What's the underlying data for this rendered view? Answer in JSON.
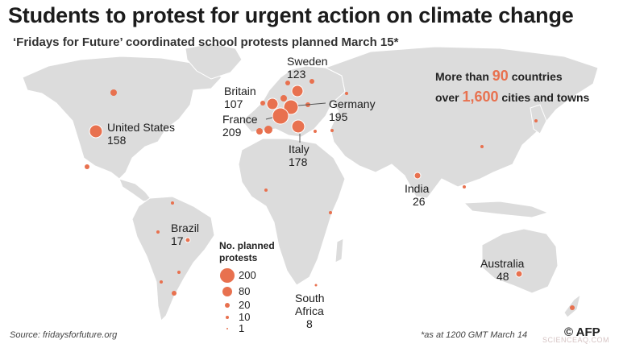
{
  "header": {
    "title": "Students to protest for urgent action on climate change",
    "subtitle": "‘Fridays for Future’ coordinated school protests planned March 15*"
  },
  "stats": {
    "countries_prefix": "More than",
    "countries_num": "90",
    "countries_suffix": "countries",
    "cities_prefix": "over",
    "cities_num": "1,600",
    "cities_suffix": "cities and towns"
  },
  "countries": [
    {
      "name": "Sweden",
      "value": "123"
    },
    {
      "name": "Britain",
      "value": "107"
    },
    {
      "name": "Germany",
      "value": "195"
    },
    {
      "name": "France",
      "value": "209"
    },
    {
      "name": "United States",
      "value": "158"
    },
    {
      "name": "Italy",
      "value": "178"
    },
    {
      "name": "India",
      "value": "26"
    },
    {
      "name": "Brazil",
      "value": "17"
    },
    {
      "name": "Australia",
      "value": "48"
    },
    {
      "name": "South",
      "name2": "Africa",
      "value": "8"
    }
  ],
  "legend": {
    "title_line1": "No. planned",
    "title_line2": "protests",
    "values": [
      "200",
      "80",
      "20",
      "10",
      "1"
    ]
  },
  "footer": {
    "source": "Source: fridaysforfuture.org",
    "note": "*as at 1200 GMT March 14",
    "credit": "© AFP",
    "watermark": "SCIENCEAQ.COM"
  },
  "colors": {
    "land": "#dcdcdc",
    "marker": "#e8714f",
    "accent": "#e8714f"
  }
}
